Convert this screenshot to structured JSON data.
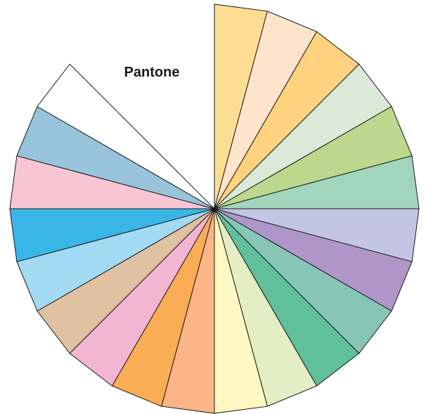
{
  "title": "Pantone",
  "wheel": {
    "segments": [
      {
        "color": "#FDDD92"
      },
      {
        "color": "#FFE4CC"
      },
      {
        "color": "#FED27E"
      },
      {
        "color": "#D9EAD9"
      },
      {
        "color": "#BBD88C"
      },
      {
        "color": "#A1D5BC"
      },
      {
        "color": "#C2C6E4"
      },
      {
        "color": "#B096C8"
      },
      {
        "color": "#87C5B7"
      },
      {
        "color": "#5FC09A"
      },
      {
        "color": "#E4EEC4"
      },
      {
        "color": "#FFF8C3"
      },
      {
        "color": "#FBB586"
      },
      {
        "color": "#FBAD56"
      },
      {
        "color": "#F2B6D3"
      },
      {
        "color": "#E0C1A1"
      },
      {
        "color": "#A3DAF4"
      },
      {
        "color": "#3AB6E6"
      },
      {
        "color": "#F8C5D2"
      },
      {
        "color": "#97C4DB"
      },
      {
        "color": "#FFFFFF"
      }
    ]
  }
}
